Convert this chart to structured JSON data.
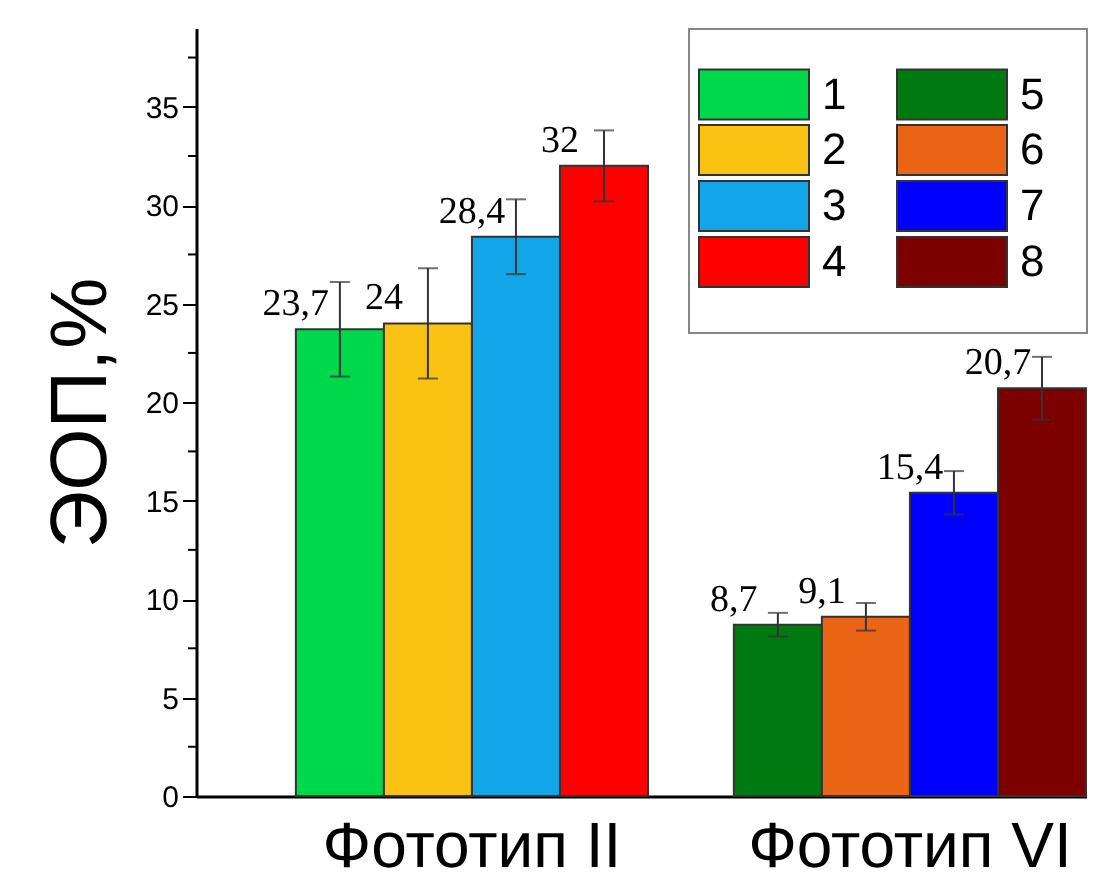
{
  "chart_data": {
    "type": "bar",
    "ylabel": "ЭОП,%",
    "categories": [
      "Фототип II",
      "Фототип VI"
    ],
    "series": [
      {
        "name": "1",
        "color": "#00d84c",
        "values": [
          23.7,
          null
        ],
        "errors": [
          2.4,
          null
        ],
        "value_labels": [
          "23,7",
          null
        ]
      },
      {
        "name": "2",
        "color": "#fac313",
        "values": [
          24,
          null
        ],
        "errors": [
          2.8,
          null
        ],
        "value_labels": [
          "24",
          null
        ]
      },
      {
        "name": "3",
        "color": "#12a6e8",
        "values": [
          28.4,
          null
        ],
        "errors": [
          1.9,
          null
        ],
        "value_labels": [
          "28,4",
          null
        ]
      },
      {
        "name": "4",
        "color": "#fe0000",
        "values": [
          32,
          null
        ],
        "errors": [
          1.8,
          null
        ],
        "value_labels": [
          "32",
          null
        ]
      },
      {
        "name": "5",
        "color": "#007a10",
        "values": [
          null,
          8.7
        ],
        "errors": [
          null,
          0.6
        ],
        "value_labels": [
          null,
          "8,7"
        ]
      },
      {
        "name": "6",
        "color": "#eb6517",
        "values": [
          null,
          9.1
        ],
        "errors": [
          null,
          0.7
        ],
        "value_labels": [
          null,
          "9,1"
        ]
      },
      {
        "name": "7",
        "color": "#0000fe",
        "values": [
          null,
          15.4
        ],
        "errors": [
          null,
          1.1
        ],
        "value_labels": [
          null,
          "15,4"
        ]
      },
      {
        "name": "8",
        "color": "#7d0000",
        "values": [
          null,
          20.7
        ],
        "errors": [
          null,
          1.6
        ],
        "value_labels": [
          null,
          "20,7"
        ]
      }
    ],
    "ylim": [
      0,
      39
    ],
    "yticks": [
      0,
      {
        "value": 2.5,
        "label": null
      },
      5,
      {
        "value": 7.5,
        "label": null
      },
      10,
      {
        "value": 12.5,
        "label": null
      },
      15,
      {
        "value": 17.5,
        "label": null
      },
      20,
      {
        "value": 22.5,
        "label": null
      },
      25,
      {
        "value": 27.5,
        "label": null
      },
      30,
      {
        "value": 32.5,
        "label": null
      },
      35,
      {
        "value": 37.5,
        "label": null
      }
    ],
    "legend": "top right"
  }
}
